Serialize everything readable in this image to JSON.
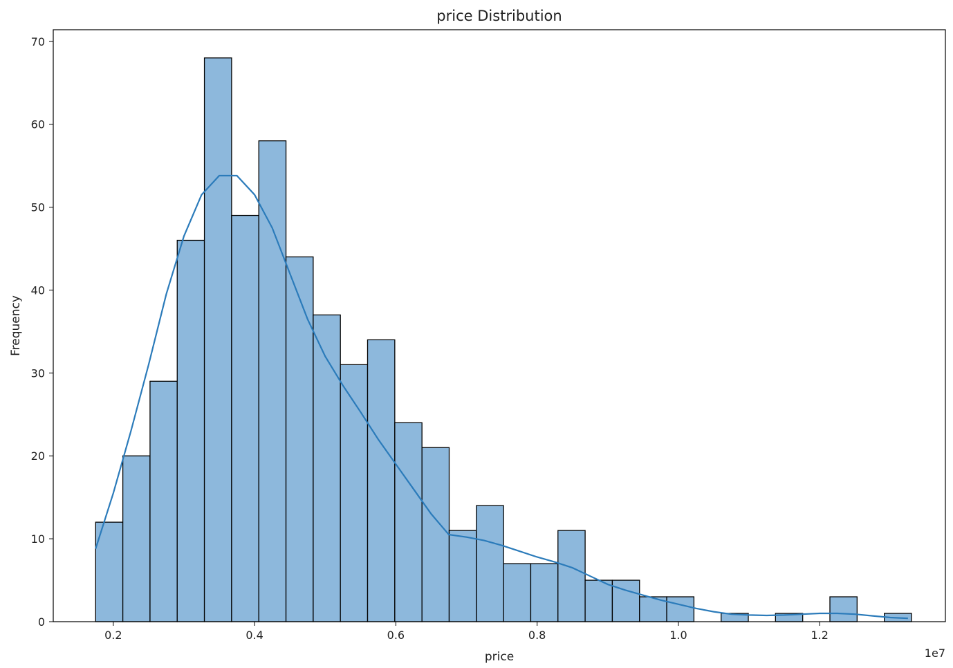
{
  "chart_data": {
    "type": "bar",
    "title": "price Distribution",
    "xlabel": "price",
    "ylabel": "Frequency",
    "x_offset_label": "1e7",
    "xlim": [
      0.115,
      1.378
    ],
    "ylim": [
      0,
      71.4
    ],
    "x_ticks": [
      {
        "value": 0.2,
        "label": "0.2"
      },
      {
        "value": 0.4,
        "label": "0.4"
      },
      {
        "value": 0.6,
        "label": "0.6"
      },
      {
        "value": 0.8,
        "label": "0.8"
      },
      {
        "value": 1.0,
        "label": "1.0"
      },
      {
        "value": 1.2,
        "label": "1.2"
      }
    ],
    "y_ticks": [
      {
        "value": 0,
        "label": "0"
      },
      {
        "value": 10,
        "label": "10"
      },
      {
        "value": 20,
        "label": "20"
      },
      {
        "value": 30,
        "label": "30"
      },
      {
        "value": 40,
        "label": "40"
      },
      {
        "value": 50,
        "label": "50"
      },
      {
        "value": 60,
        "label": "60"
      },
      {
        "value": 70,
        "label": "70"
      }
    ],
    "bin_start": 0.175,
    "bin_width": 0.0385,
    "values": [
      12,
      20,
      29,
      46,
      68,
      49,
      58,
      44,
      37,
      31,
      34,
      24,
      21,
      11,
      14,
      7,
      7,
      11,
      5,
      5,
      3,
      3,
      0,
      1,
      0,
      1,
      0,
      3,
      0,
      1
    ],
    "kde": {
      "x": [
        0.175,
        0.2,
        0.225,
        0.25,
        0.275,
        0.3,
        0.325,
        0.35,
        0.375,
        0.4,
        0.425,
        0.45,
        0.475,
        0.5,
        0.525,
        0.55,
        0.575,
        0.6,
        0.625,
        0.65,
        0.675,
        0.7,
        0.725,
        0.75,
        0.775,
        0.8,
        0.825,
        0.85,
        0.875,
        0.9,
        0.925,
        0.95,
        0.975,
        1.0,
        1.025,
        1.05,
        1.075,
        1.1,
        1.125,
        1.15,
        1.175,
        1.2,
        1.225,
        1.25,
        1.275,
        1.3,
        1.325
      ],
      "y": [
        8.8,
        15.5,
        23,
        31,
        39.5,
        46.5,
        51.5,
        53.8,
        53.8,
        51.5,
        47.5,
        42,
        36.5,
        32,
        28.5,
        25.3,
        22,
        19,
        16,
        13,
        10.5,
        10.2,
        9.8,
        9.2,
        8.5,
        7.8,
        7.2,
        6.5,
        5.5,
        4.5,
        3.8,
        3.2,
        2.6,
        2.1,
        1.6,
        1.2,
        0.9,
        0.8,
        0.75,
        0.8,
        0.9,
        1.0,
        1.0,
        0.9,
        0.7,
        0.5,
        0.4
      ]
    },
    "grid": false,
    "legend": "none",
    "bar_fill": "#8db8dc",
    "bar_edge": "#000000",
    "kde_color": "#2b7bba"
  }
}
